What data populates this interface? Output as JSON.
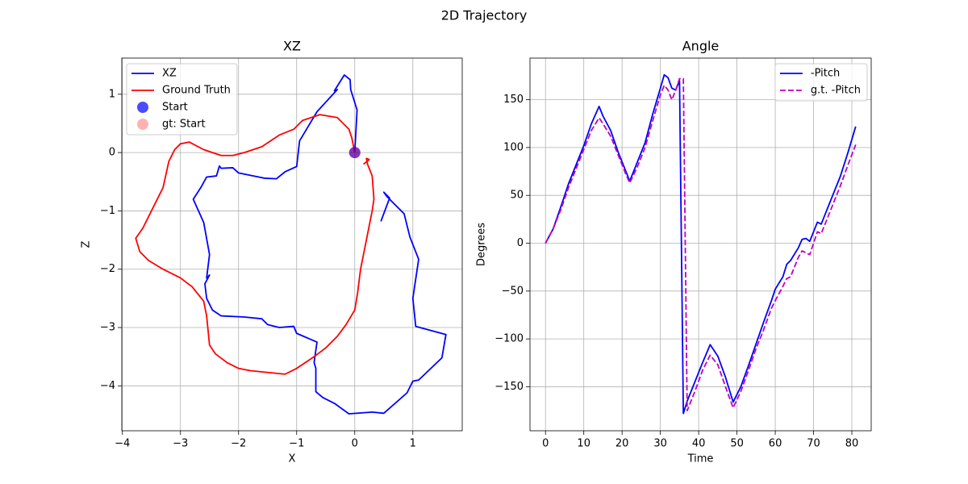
{
  "title": "2D Trajectory",
  "chart_data": [
    {
      "type": "line",
      "title": "XZ",
      "xlabel": "X",
      "ylabel": "Z",
      "grid": true,
      "legend": "upper left",
      "xlim": [
        -4.01,
        1.85
      ],
      "ylim": [
        -4.77,
        1.62
      ],
      "xticks": [
        {
          "value": -4,
          "label": "−4"
        },
        {
          "value": -3,
          "label": "−3"
        },
        {
          "value": -2,
          "label": "−2"
        },
        {
          "value": -1,
          "label": "−1"
        },
        0,
        1
      ],
      "yticks": [
        {
          "value": -4,
          "label": "−4"
        },
        {
          "value": -3,
          "label": "−3"
        },
        {
          "value": -2,
          "label": "−2"
        },
        {
          "value": -1,
          "label": "−1"
        },
        0,
        1
      ],
      "series": [
        {
          "name": "XZ",
          "color": "#0000ff",
          "x": [
            0,
            0.04,
            -0.07,
            -0.08,
            -0.18,
            -0.35,
            -0.3,
            -0.65,
            -0.95,
            -1,
            -1.2,
            -1.35,
            -1.55,
            -1.65,
            -2,
            -2.1,
            -2.3,
            -2.33,
            -2.38,
            -2.55,
            -2.65,
            -2.78,
            -2.6,
            -2.5,
            -2.55,
            -2.5,
            -2.58,
            -2.55,
            -2.45,
            -2.3,
            -1.9,
            -1.6,
            -1.5,
            -1.3,
            -1.05,
            -1,
            -0.65,
            -0.7,
            -0.67,
            -0.67,
            -0.55,
            -0.35,
            -0.1,
            0.3,
            0.5,
            0.9,
            1,
            1.1,
            1.5,
            1.57,
            1.05,
            1,
            1.1,
            0.95,
            0.85,
            0.55,
            0.5,
            0.6,
            0.45
          ],
          "values": [
            0,
            0.73,
            1.08,
            1.25,
            1.33,
            1.06,
            1.08,
            0.7,
            0.2,
            -0.24,
            -0.33,
            -0.45,
            -0.44,
            -0.42,
            -0.35,
            -0.26,
            -0.27,
            -0.23,
            -0.4,
            -0.42,
            -0.6,
            -0.8,
            -1.2,
            -1.75,
            -2.15,
            -2.1,
            -2.25,
            -2.5,
            -2.7,
            -2.8,
            -2.82,
            -2.85,
            -2.95,
            -3,
            -2.98,
            -3.1,
            -3.25,
            -3.6,
            -3.7,
            -4.1,
            -4.2,
            -4.3,
            -4.48,
            -4.45,
            -4.47,
            -4.12,
            -3.92,
            -3.9,
            -3.52,
            -3.12,
            -2.98,
            -2.5,
            -1.83,
            -1.45,
            -1.05,
            -0.75,
            -0.68,
            -0.78,
            -1.18
          ]
        },
        {
          "name": "Ground Truth",
          "color": "#ff0000",
          "x": [
            0,
            -0.05,
            -0.1,
            -0.3,
            -0.6,
            -0.9,
            -1.05,
            -1.3,
            -1.6,
            -1.9,
            -2.1,
            -2.3,
            -2.6,
            -2.85,
            -3,
            -3.1,
            -3.2,
            -3.3,
            -3.5,
            -3.65,
            -3.77,
            -3.7,
            -3.55,
            -3.3,
            -3,
            -2.8,
            -2.6,
            -2.55,
            -2.5,
            -2.4,
            -2.2,
            -2,
            -1.8,
            -1.2,
            -1,
            -0.7,
            -0.5,
            -0.3,
            -0.15,
            0,
            0.05,
            0.1,
            0.2,
            0.3,
            0.33,
            0.3,
            0.22,
            0.2,
            0.25,
            0.15
          ],
          "values": [
            0,
            0.25,
            0.4,
            0.6,
            0.65,
            0.55,
            0.4,
            0.3,
            0.1,
            0,
            -0.05,
            -0.05,
            0.05,
            0.18,
            0.15,
            0.05,
            -0.15,
            -0.6,
            -1,
            -1.3,
            -1.47,
            -1.7,
            -1.85,
            -2,
            -2.15,
            -2.3,
            -2.55,
            -2.8,
            -3.3,
            -3.45,
            -3.6,
            -3.7,
            -3.74,
            -3.8,
            -3.7,
            -3.5,
            -3.35,
            -3.15,
            -2.95,
            -2.7,
            -2.4,
            -2,
            -1.5,
            -1,
            -0.8,
            -0.4,
            -0.2,
            -0.1,
            -0.12,
            -0.2
          ]
        },
        {
          "name": "Start",
          "type": "scatter",
          "color": "#0000ff",
          "alpha": 0.7,
          "x": [
            0
          ],
          "values": [
            0
          ]
        },
        {
          "name": "gt: Start",
          "type": "scatter",
          "color": "#ff0000",
          "alpha": 0.3,
          "x": [
            0
          ],
          "values": [
            0
          ]
        }
      ]
    },
    {
      "type": "line",
      "title": "Angle",
      "xlabel": "Time",
      "ylabel": "Degrees",
      "grid": true,
      "legend": "upper right",
      "xlim": [
        -4.05,
        85.05
      ],
      "ylim": [
        -196,
        193.5
      ],
      "xticks": [
        0,
        10,
        20,
        30,
        40,
        50,
        60,
        70,
        80
      ],
      "yticks": [
        {
          "value": -150,
          "label": "−150"
        },
        {
          "value": -100,
          "label": "−100"
        },
        {
          "value": -50,
          "label": "−50"
        },
        0,
        50,
        100,
        150
      ],
      "x": [
        0,
        2,
        4,
        6,
        8,
        10,
        12,
        14,
        15,
        17,
        19,
        21,
        22,
        24,
        26,
        28,
        30,
        31,
        32,
        33,
        34,
        35,
        36,
        37,
        39,
        41,
        43,
        45,
        47,
        49,
        51,
        53,
        55,
        57,
        59,
        60,
        62,
        63,
        64,
        66,
        67,
        68,
        69,
        71,
        72,
        73,
        75,
        77,
        79,
        81
      ],
      "series": [
        {
          "name": "-Pitch",
          "color": "#0000ff",
          "values": [
            0,
            15,
            38,
            62,
            82,
            102,
            125,
            143,
            133,
            118,
            95,
            75,
            65,
            85,
            105,
            135,
            162,
            176,
            173,
            162,
            160,
            170,
            -178,
            -165,
            -145,
            -125,
            -106,
            -118,
            -140,
            -166,
            -150,
            -128,
            -105,
            -82,
            -60,
            -48,
            -35,
            -22,
            -18,
            -5,
            4,
            5,
            2,
            22,
            20,
            30,
            50,
            70,
            95,
            122
          ]
        },
        {
          "name": "g.t. -Pitch",
          "color": "#bf00bf",
          "linestyle": "dashed",
          "values": [
            0,
            15,
            35,
            58,
            78,
            98,
            118,
            131,
            125,
            112,
            92,
            72,
            63,
            80,
            100,
            128,
            155,
            165,
            160,
            150,
            160,
            172,
            172,
            -175,
            -155,
            -133,
            -117,
            -127,
            -150,
            -172,
            -155,
            -133,
            -110,
            -90,
            -68,
            -60,
            -45,
            -37,
            -35,
            -15,
            -8,
            -10,
            -12,
            12,
            10,
            20,
            40,
            60,
            82,
            103
          ]
        }
      ]
    }
  ]
}
